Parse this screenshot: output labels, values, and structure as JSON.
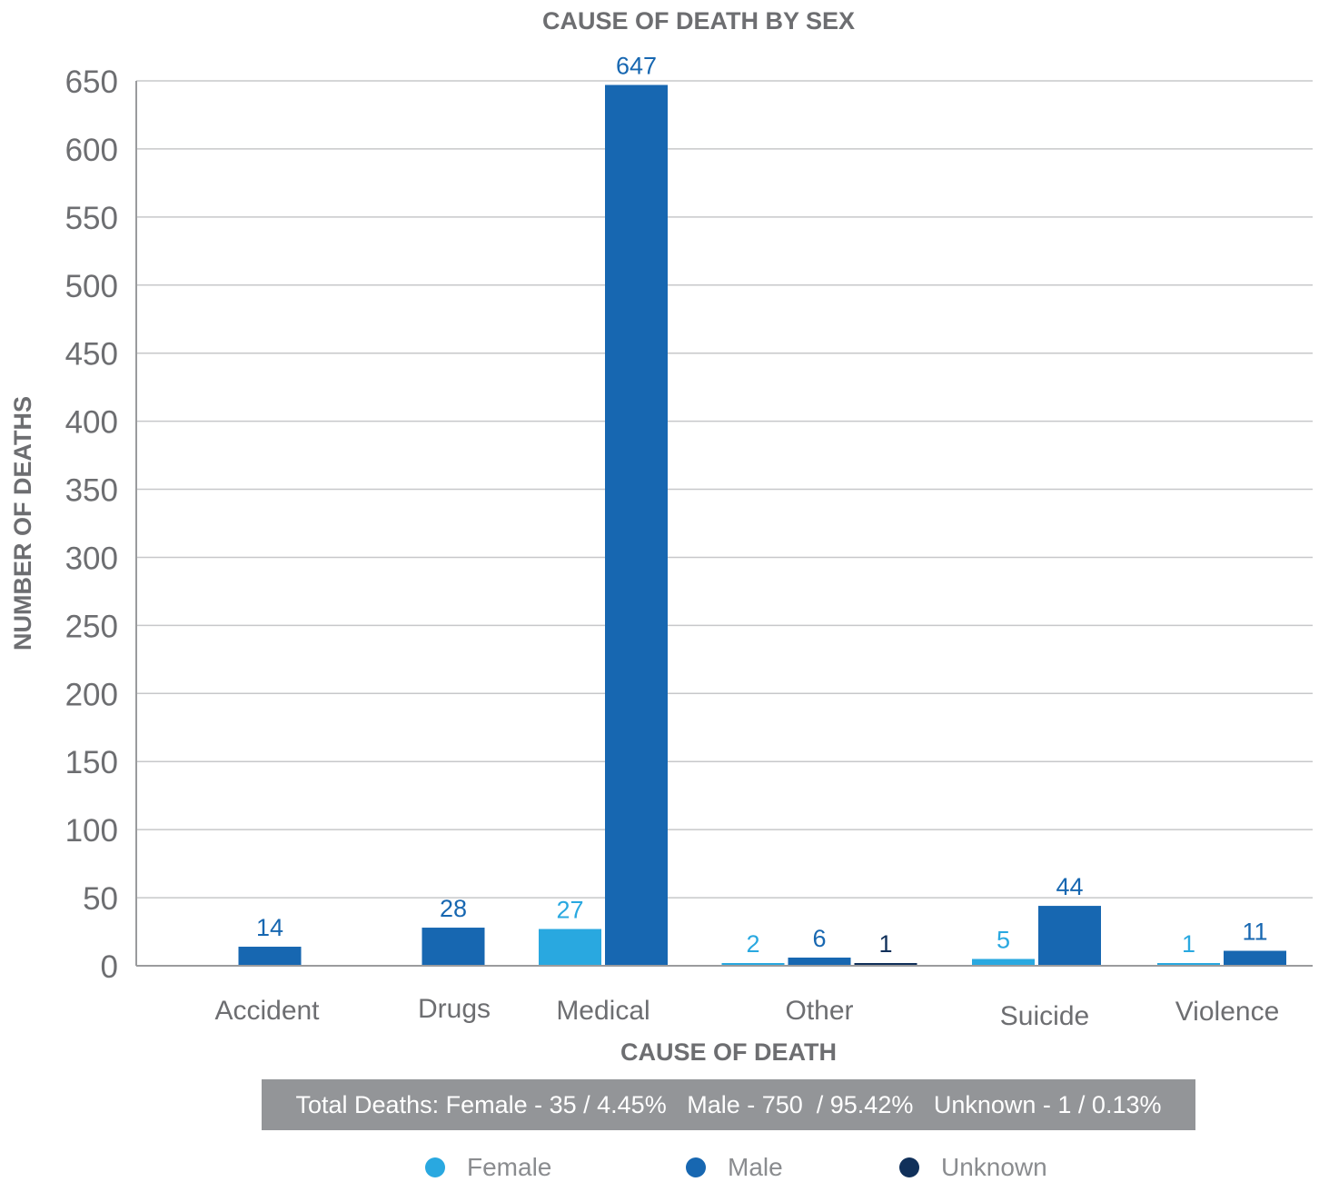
{
  "chart_data": {
    "type": "bar",
    "title": "CAUSE OF DEATH BY SEX",
    "xlabel": "CAUSE OF DEATH",
    "ylabel": "NUMBER OF DEATHS",
    "ylim": [
      0,
      650
    ],
    "yticks": [
      0,
      50,
      100,
      150,
      200,
      250,
      300,
      350,
      400,
      450,
      500,
      550,
      600,
      650
    ],
    "grid": true,
    "legend_position": "bottom",
    "categories": [
      "Accident",
      "Drugs",
      "Medical",
      "Other",
      "Suicide",
      "Violence"
    ],
    "series": [
      {
        "name": "Female",
        "color": "#29a8e0",
        "values": [
          null,
          null,
          27,
          2,
          5,
          1
        ]
      },
      {
        "name": "Male",
        "color": "#1767b1",
        "values": [
          14,
          28,
          647,
          6,
          44,
          11
        ]
      },
      {
        "name": "Unknown",
        "color": "#10305a",
        "values": [
          null,
          null,
          null,
          1,
          null,
          null
        ]
      }
    ]
  },
  "summary": "Total Deaths: Female - 35 / 4.45%   Male - 750  / 95.42%   Unknown - 1 / 0.13%"
}
